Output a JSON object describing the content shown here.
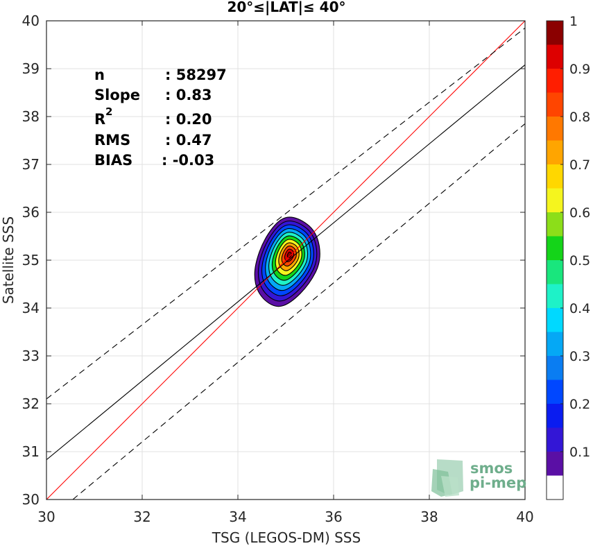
{
  "chart_data": {
    "type": "contour-density",
    "title": "20°≤|LAT|≤ 40°",
    "xlabel": "TSG (LEGOS-DM) SSS",
    "ylabel": "Satellite SSS",
    "xlim": [
      30,
      40
    ],
    "ylim": [
      30,
      40
    ],
    "xticks": [
      "30",
      "32",
      "34",
      "36",
      "38",
      "40"
    ],
    "yticks": [
      "30",
      "31",
      "32",
      "33",
      "34",
      "35",
      "36",
      "37",
      "38",
      "39",
      "40"
    ],
    "grid": true,
    "stats": [
      {
        "label": "n",
        "value": ": 58297"
      },
      {
        "label": "Slope",
        "value": ": 0.83"
      },
      {
        "label": "R",
        "sup": "2",
        "value": ": 0.20"
      },
      {
        "label": "RMS",
        "value": ": 0.47"
      },
      {
        "label": "BIAS",
        "value": ": -0.03"
      }
    ],
    "lines": [
      {
        "name": "one-to-one",
        "color": "#ff0000",
        "style": "solid",
        "points": [
          [
            30,
            30
          ],
          [
            40,
            40
          ]
        ]
      },
      {
        "name": "regression",
        "color": "#000000",
        "style": "solid",
        "points": [
          [
            30,
            30.83
          ],
          [
            40,
            39.08
          ]
        ]
      },
      {
        "name": "upper-bound",
        "color": "#000000",
        "style": "dashed",
        "points": [
          [
            30,
            32.1
          ],
          [
            40,
            39.85
          ]
        ]
      },
      {
        "name": "lower-bound",
        "color": "#000000",
        "style": "dashed",
        "points": [
          [
            30.55,
            30
          ],
          [
            40,
            37.85
          ]
        ]
      }
    ],
    "density": {
      "center": [
        35.08,
        35.12
      ],
      "contour_levels": [
        0.05,
        0.1,
        0.2,
        0.3,
        0.4,
        0.5,
        0.6,
        0.7,
        0.8,
        0.9,
        0.95
      ],
      "outer_contour": [
        [
          34.5,
          34.2
        ],
        [
          34.8,
          34.0
        ],
        [
          35.1,
          34.1
        ],
        [
          35.5,
          34.5
        ],
        [
          35.75,
          35.0
        ],
        [
          35.65,
          35.6
        ],
        [
          35.25,
          35.9
        ],
        [
          34.9,
          35.9
        ],
        [
          34.55,
          35.45
        ],
        [
          34.35,
          34.9
        ],
        [
          34.35,
          34.5
        ]
      ]
    },
    "colorbar": {
      "range": [
        0,
        1
      ],
      "ticks": [
        "0.1",
        "0.2",
        "0.3",
        "0.4",
        "0.5",
        "0.6",
        "0.7",
        "0.8",
        "0.9",
        "1"
      ],
      "bands": [
        {
          "from": 0.0,
          "to": 0.05,
          "color": "#ffffff"
        },
        {
          "from": 0.05,
          "to": 0.1,
          "color": "#5a0fa5"
        },
        {
          "from": 0.1,
          "to": 0.15,
          "color": "#3316d6"
        },
        {
          "from": 0.15,
          "to": 0.2,
          "color": "#0a1cf0"
        },
        {
          "from": 0.2,
          "to": 0.25,
          "color": "#0047ff"
        },
        {
          "from": 0.25,
          "to": 0.3,
          "color": "#0a7df2"
        },
        {
          "from": 0.3,
          "to": 0.35,
          "color": "#05a8f5"
        },
        {
          "from": 0.35,
          "to": 0.4,
          "color": "#00d9ff"
        },
        {
          "from": 0.4,
          "to": 0.45,
          "color": "#1ef2c8"
        },
        {
          "from": 0.45,
          "to": 0.5,
          "color": "#19e67d"
        },
        {
          "from": 0.5,
          "to": 0.55,
          "color": "#14d419"
        },
        {
          "from": 0.55,
          "to": 0.6,
          "color": "#8cde19"
        },
        {
          "from": 0.6,
          "to": 0.65,
          "color": "#f5f51e"
        },
        {
          "from": 0.65,
          "to": 0.7,
          "color": "#ffd700"
        },
        {
          "from": 0.7,
          "to": 0.75,
          "color": "#ffa500"
        },
        {
          "from": 0.75,
          "to": 0.8,
          "color": "#ff7800"
        },
        {
          "from": 0.8,
          "to": 0.85,
          "color": "#ff4500"
        },
        {
          "from": 0.85,
          "to": 0.9,
          "color": "#ff1e00"
        },
        {
          "from": 0.9,
          "to": 0.95,
          "color": "#dd0000"
        },
        {
          "from": 0.95,
          "to": 1.0,
          "color": "#8b0000"
        }
      ]
    }
  },
  "logo": {
    "line1": "smos",
    "line2": "pi-mep",
    "color": "#6fae8c"
  }
}
